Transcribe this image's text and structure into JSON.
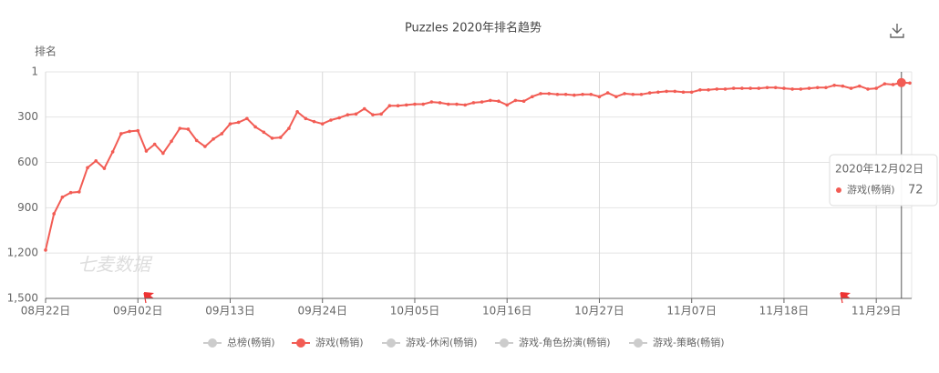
{
  "chart_data": {
    "type": "line",
    "title": "Puzzles 2020年排名趋势",
    "y_label": "排名",
    "watermark": "七麦数据",
    "y_inverse": true,
    "grid": true,
    "ylim": [
      1,
      1500
    ],
    "yticks": [
      1,
      300,
      600,
      900,
      {
        "value": 1200,
        "label": "1,200"
      },
      {
        "value": 1500,
        "label": "1,500"
      }
    ],
    "x": [
      "08月22日",
      "08月23日",
      "08月24日",
      "08月25日",
      "08月26日",
      "08月27日",
      "08月28日",
      "08月29日",
      "08月30日",
      "08月31日",
      "09月01日",
      "09月02日",
      "09月03日",
      "09月04日",
      "09月05日",
      "09月06日",
      "09月07日",
      "09月08日",
      "09月09日",
      "09月10日",
      "09月11日",
      "09月12日",
      "09月13日",
      "09月14日",
      "09月15日",
      "09月16日",
      "09月17日",
      "09月18日",
      "09月19日",
      "09月20日",
      "09月21日",
      "09月22日",
      "09月23日",
      "09月24日",
      "09月25日",
      "09月26日",
      "09月27日",
      "09月28日",
      "09月29日",
      "09月30日",
      "10月01日",
      "10月02日",
      "10月03日",
      "10月04日",
      "10月05日",
      "10月06日",
      "10月07日",
      "10月08日",
      "10月09日",
      "10月10日",
      "10月11日",
      "10月12日",
      "10月13日",
      "10月14日",
      "10月15日",
      "10月16日",
      "10月17日",
      "10月18日",
      "10月19日",
      "10月20日",
      "10月21日",
      "10月22日",
      "10月23日",
      "10月24日",
      "10月25日",
      "10月26日",
      "10月27日",
      "10月28日",
      "10月29日",
      "10月30日",
      "10月31日",
      "11月01日",
      "11月02日",
      "11月03日",
      "11月04日",
      "11月05日",
      "11月06日",
      "11月07日",
      "11月08日",
      "11月09日",
      "11月10日",
      "11月11日",
      "11月12日",
      "11月13日",
      "11月14日",
      "11月15日",
      "11月16日",
      "11月17日",
      "11月18日",
      "11月19日",
      "11月20日",
      "11月21日",
      "11月22日",
      "11月23日",
      "11月24日",
      "11月25日",
      "11月26日",
      "11月27日",
      "11月28日",
      "11月29日",
      "11月30日",
      "12月01日",
      "12月02日",
      "12月03日"
    ],
    "xticks": [
      "08月22日",
      "09月02日",
      "09月13日",
      "09月24日",
      "10月05日",
      "10月16日",
      "10月27日",
      "11月07日",
      "11月18日",
      "11月29日"
    ],
    "series": [
      {
        "name": "总榜(畅销)",
        "color": "#cccccc",
        "visible": false
      },
      {
        "name": "游戏(畅销)",
        "color": "#f25c54",
        "visible": true,
        "values": [
          1180,
          940,
          830,
          800,
          795,
          635,
          590,
          640,
          530,
          410,
          395,
          390,
          525,
          480,
          540,
          460,
          375,
          380,
          455,
          495,
          445,
          410,
          345,
          335,
          310,
          365,
          400,
          440,
          435,
          375,
          265,
          310,
          330,
          345,
          320,
          305,
          285,
          280,
          245,
          285,
          280,
          225,
          225,
          220,
          215,
          215,
          200,
          205,
          215,
          215,
          220,
          205,
          200,
          190,
          195,
          220,
          190,
          195,
          165,
          145,
          145,
          150,
          150,
          155,
          150,
          150,
          165,
          140,
          165,
          145,
          150,
          150,
          140,
          135,
          130,
          130,
          135,
          135,
          120,
          120,
          115,
          115,
          110,
          110,
          110,
          110,
          105,
          105,
          110,
          115,
          115,
          110,
          105,
          105,
          90,
          95,
          110,
          95,
          115,
          110,
          80,
          85,
          72,
          75
        ]
      },
      {
        "name": "游戏-休闲(畅销)",
        "color": "#cccccc",
        "visible": false
      },
      {
        "name": "游戏-角色扮演(畅销)",
        "color": "#cccccc",
        "visible": false
      },
      {
        "name": "游戏-策略(畅销)",
        "color": "#cccccc",
        "visible": false
      }
    ],
    "tooltip": {
      "title": "2020年12月02日",
      "index": 102,
      "series": 1
    }
  }
}
